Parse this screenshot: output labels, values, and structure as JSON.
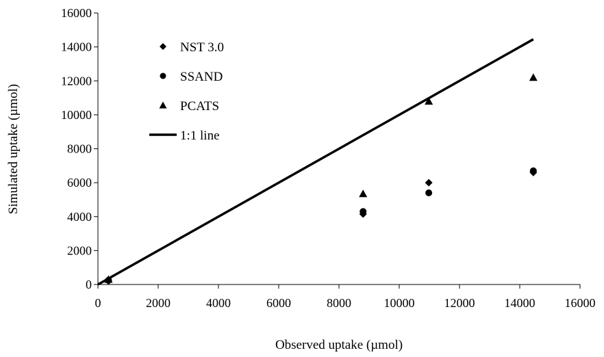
{
  "chart_data": {
    "type": "scatter",
    "title": "",
    "xlabel": "Observed uptake (µmol)",
    "ylabel": "Simulated uptake  (µmol)",
    "xlim": [
      0,
      16000
    ],
    "ylim": [
      0,
      16000
    ],
    "xticks": [
      "0",
      "2000",
      "4000",
      "6000",
      "8000",
      "10000",
      "12000",
      "14000",
      "16000"
    ],
    "yticks": [
      "0",
      "2000",
      "4000",
      "6000",
      "8000",
      "10000",
      "12000",
      "14000",
      "16000"
    ],
    "grid": false,
    "legend_position": "top-left",
    "series": [
      {
        "name": "NST 3.0",
        "marker": "diamond",
        "color": "#000000",
        "x": [
          350,
          8800,
          10980,
          14450
        ],
        "y": [
          200,
          4150,
          6000,
          6600
        ]
      },
      {
        "name": "SSAND",
        "marker": "circle",
        "color": "#000000",
        "x": [
          350,
          8800,
          10980,
          14450
        ],
        "y": [
          250,
          4300,
          5400,
          6700
        ]
      },
      {
        "name": "PCATS",
        "marker": "triangle",
        "color": "#000000",
        "x": [
          350,
          8800,
          10980,
          14450
        ],
        "y": [
          300,
          5350,
          10800,
          12200
        ]
      },
      {
        "name": "1:1 line",
        "marker": "line",
        "color": "#000000",
        "x": [
          0,
          14450
        ],
        "y": [
          0,
          14450
        ]
      }
    ]
  }
}
